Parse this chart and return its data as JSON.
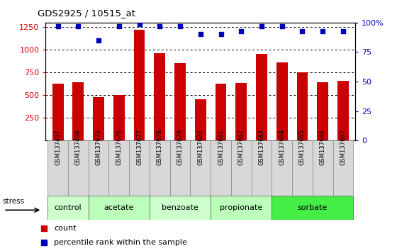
{
  "title": "GDS2925 / 10515_at",
  "samples": [
    "GSM137497",
    "GSM137498",
    "GSM137675",
    "GSM137676",
    "GSM137677",
    "GSM137678",
    "GSM137679",
    "GSM137680",
    "GSM137681",
    "GSM137682",
    "GSM137683",
    "GSM137684",
    "GSM137685",
    "GSM137686",
    "GSM137687"
  ],
  "counts": [
    625,
    645,
    480,
    500,
    1220,
    960,
    850,
    455,
    625,
    635,
    955,
    860,
    750,
    645,
    660
  ],
  "percentiles": [
    97,
    97,
    85,
    97,
    99,
    97,
    97,
    90,
    90,
    93,
    97,
    97,
    93,
    93,
    93
  ],
  "bar_color": "#CC0000",
  "dot_color": "#0000BB",
  "ylim_left": [
    0,
    1300
  ],
  "ylim_right": [
    0,
    100
  ],
  "yticks_left": [
    250,
    500,
    750,
    1000,
    1250
  ],
  "yticks_right": [
    0,
    25,
    50,
    75,
    100
  ],
  "groups": [
    {
      "label": "control",
      "start": 0,
      "end": 2,
      "color": "#ccffcc"
    },
    {
      "label": "acetate",
      "start": 2,
      "end": 5,
      "color": "#bbffbb"
    },
    {
      "label": "benzoate",
      "start": 5,
      "end": 8,
      "color": "#ccffcc"
    },
    {
      "label": "propionate",
      "start": 8,
      "end": 11,
      "color": "#bbffbb"
    },
    {
      "label": "sorbate",
      "start": 11,
      "end": 15,
      "color": "#44ee44"
    }
  ],
  "stress_label": "stress",
  "legend_count_label": "count",
  "legend_pct_label": "percentile rank within the sample",
  "bar_color_legend": "#CC0000",
  "dot_color_legend": "#0000BB",
  "tick_label_color_left": "#CC0000",
  "tick_label_color_right": "#0000BB",
  "background_color": "#ffffff",
  "sample_cell_color": "#d8d8d8",
  "sample_cell_border": "#888888"
}
